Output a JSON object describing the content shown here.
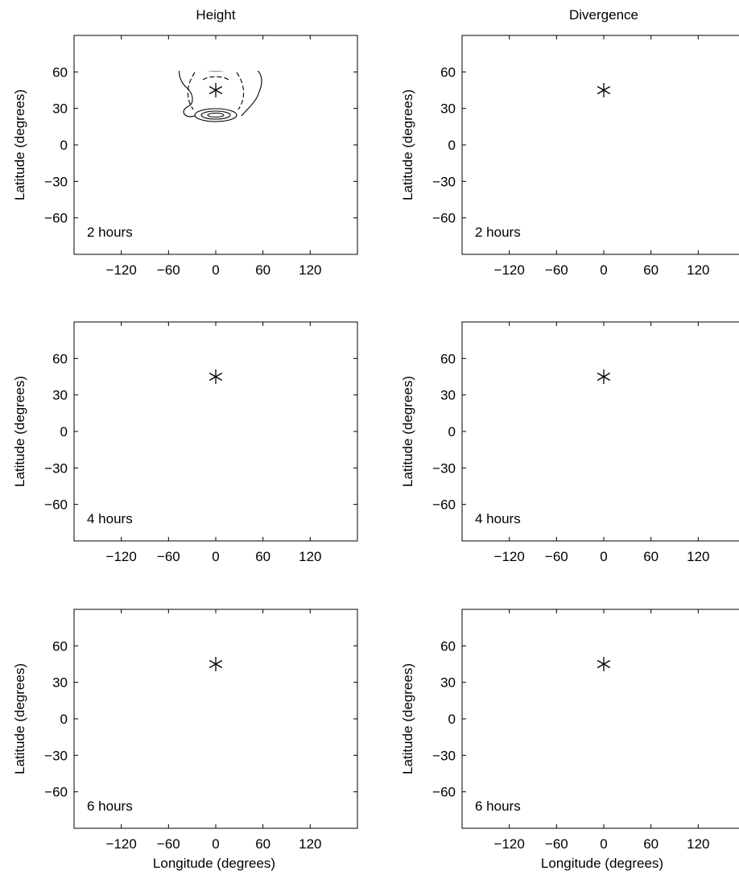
{
  "columns": [
    "Height",
    "Divergence"
  ],
  "rows": [
    "2 hours",
    "4 hours",
    "6 hours"
  ],
  "xlabel": "Longitude (degrees)",
  "ylabel": "Latitude (degrees)",
  "xticks": [
    -120,
    -60,
    0,
    60,
    120
  ],
  "yticks": [
    60,
    30,
    0,
    -30,
    -60
  ],
  "chart_data": {
    "type": "contour",
    "layout": "3x2 grid of contour plots",
    "xlim": [
      -180,
      180
    ],
    "ylim": [
      -90,
      90
    ],
    "marker": {
      "symbol": "*",
      "lon": 0,
      "lat": 45
    },
    "contour_style": {
      "positive": "solid",
      "negative": "dashed"
    },
    "panels": [
      {
        "column": "Height",
        "time": "2 hours"
      },
      {
        "column": "Divergence",
        "time": "2 hours"
      },
      {
        "column": "Height",
        "time": "4 hours"
      },
      {
        "column": "Divergence",
        "time": "4 hours"
      },
      {
        "column": "Height",
        "time": "6 hours"
      },
      {
        "column": "Divergence",
        "time": "6 hours"
      }
    ]
  }
}
